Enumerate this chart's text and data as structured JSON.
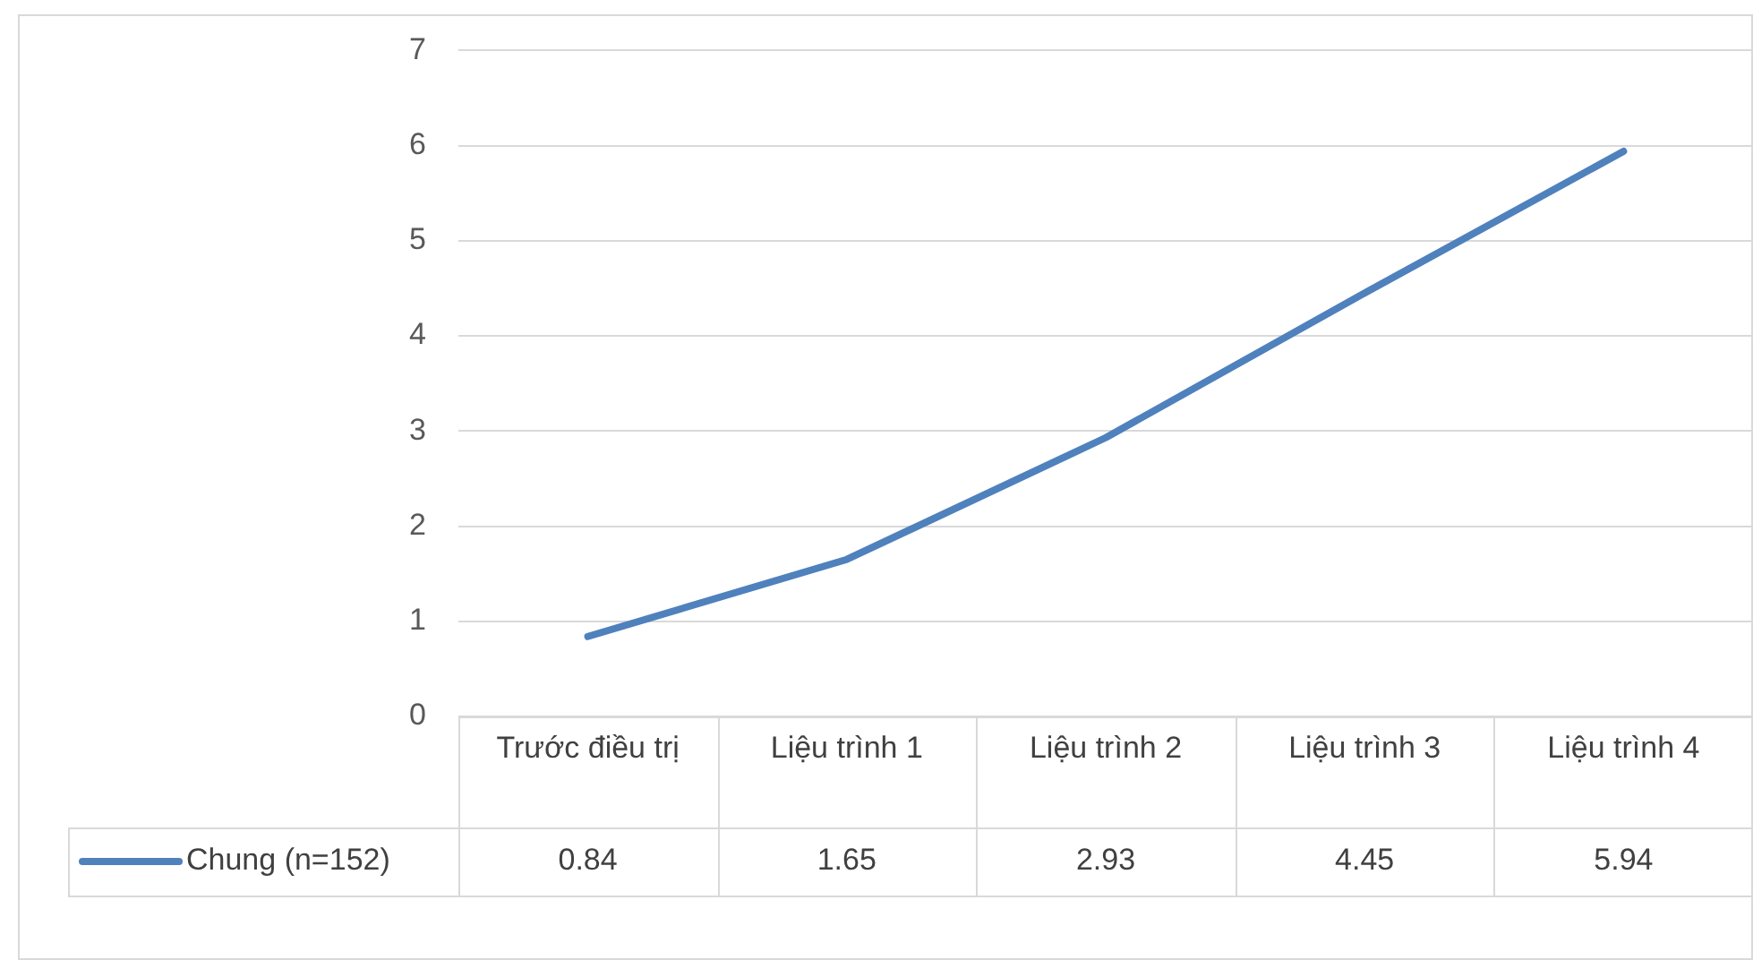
{
  "chart_data": {
    "type": "line",
    "categories": [
      "Trước điều trị",
      "Liệu trình 1",
      "Liệu trình 2",
      "Liệu trình 3",
      "Liệu trình 4"
    ],
    "series": [
      {
        "name": "Chung (n=152)",
        "color": "#4f81bd",
        "values": [
          0.84,
          1.65,
          2.93,
          4.45,
          5.94
        ]
      }
    ],
    "ylim": [
      0,
      7
    ],
    "yticks": [
      0,
      1,
      2,
      3,
      4,
      5,
      6,
      7
    ],
    "grid": "y",
    "legend": "bottom",
    "data_labels": true,
    "marker": "none"
  }
}
